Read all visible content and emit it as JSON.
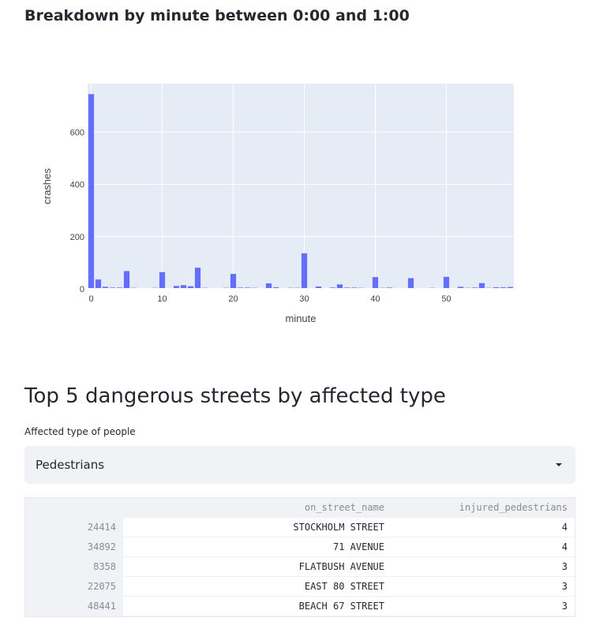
{
  "breakdown": {
    "title": "Breakdown by minute between 0:00 and 1:00"
  },
  "chart_data": {
    "type": "bar",
    "xlabel": "minute",
    "ylabel": "crashes",
    "x": [
      0,
      1,
      2,
      3,
      4,
      5,
      6,
      7,
      8,
      9,
      10,
      11,
      12,
      13,
      14,
      15,
      16,
      17,
      18,
      19,
      20,
      21,
      22,
      23,
      24,
      25,
      26,
      27,
      28,
      29,
      30,
      31,
      32,
      33,
      34,
      35,
      36,
      37,
      38,
      39,
      40,
      41,
      42,
      43,
      44,
      45,
      46,
      47,
      48,
      49,
      50,
      51,
      52,
      53,
      54,
      55,
      56,
      57,
      58,
      59
    ],
    "values": [
      745,
      36,
      8,
      5,
      5,
      68,
      4,
      3,
      3,
      4,
      64,
      2,
      11,
      14,
      10,
      81,
      4,
      3,
      3,
      4,
      57,
      5,
      5,
      4,
      3,
      21,
      6,
      3,
      4,
      4,
      136,
      3,
      9,
      3,
      5,
      17,
      5,
      5,
      4,
      3,
      45,
      4,
      5,
      3,
      3,
      41,
      3,
      3,
      4,
      3,
      46,
      3,
      8,
      4,
      5,
      22,
      4,
      6,
      6,
      7
    ],
    "xticks": [
      0,
      10,
      20,
      30,
      40,
      50
    ],
    "yticks": [
      0,
      200,
      400,
      600
    ],
    "xlim": [
      -0.5,
      59.5
    ],
    "ylim": [
      0,
      785
    ],
    "bar_color": "#636efa",
    "plot_bg": "#e5ecf6",
    "grid": true
  },
  "streets": {
    "heading": "Top 5 dangerous streets by affected type",
    "select_label": "Affected type of people",
    "selected": "Pedestrians",
    "table": {
      "columns": [
        "on_street_name",
        "injured_pedestrians"
      ],
      "rows": [
        {
          "index": "24414",
          "street": "STOCKHOLM STREET",
          "count": "4"
        },
        {
          "index": "34892",
          "street": "71 AVENUE",
          "count": "4"
        },
        {
          "index": "8358",
          "street": "FLATBUSH AVENUE",
          "count": "3"
        },
        {
          "index": "22075",
          "street": "EAST 80 STREET",
          "count": "3"
        },
        {
          "index": "48441",
          "street": "BEACH 67 STREET",
          "count": "3"
        }
      ]
    }
  }
}
